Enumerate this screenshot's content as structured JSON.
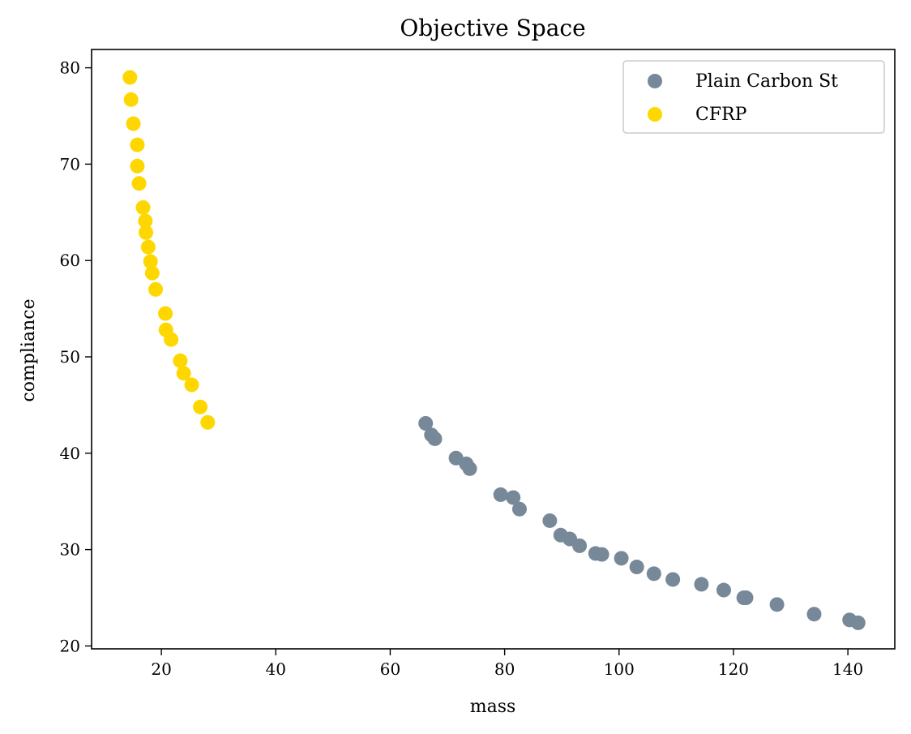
{
  "chart_data": {
    "type": "scatter",
    "title": "Objective Space",
    "xlabel": "mass",
    "ylabel": "compliance",
    "xlim": [
      7.8,
      148.2
    ],
    "ylim": [
      19.7,
      81.9
    ],
    "xticks": [
      20,
      40,
      60,
      80,
      100,
      120,
      140
    ],
    "yticks": [
      20,
      30,
      40,
      50,
      60,
      70,
      80
    ],
    "grid": false,
    "legend_position": "top-right",
    "series": [
      {
        "name": "Plain Carbon St",
        "color": "#778899",
        "points": [
          [
            66.2,
            43.1
          ],
          [
            67.2,
            41.9
          ],
          [
            67.8,
            41.5
          ],
          [
            71.5,
            39.5
          ],
          [
            73.3,
            38.9
          ],
          [
            73.9,
            38.4
          ],
          [
            79.3,
            35.7
          ],
          [
            81.5,
            35.4
          ],
          [
            82.6,
            34.2
          ],
          [
            87.9,
            33.0
          ],
          [
            89.8,
            31.5
          ],
          [
            91.4,
            31.1
          ],
          [
            93.1,
            30.4
          ],
          [
            95.9,
            29.6
          ],
          [
            97.0,
            29.5
          ],
          [
            100.4,
            29.1
          ],
          [
            103.1,
            28.2
          ],
          [
            106.1,
            27.5
          ],
          [
            109.4,
            26.9
          ],
          [
            114.4,
            26.4
          ],
          [
            118.3,
            25.8
          ],
          [
            121.8,
            25.0
          ],
          [
            122.2,
            25.0
          ],
          [
            127.6,
            24.3
          ],
          [
            134.1,
            23.3
          ],
          [
            140.3,
            22.7
          ],
          [
            141.8,
            22.4
          ]
        ]
      },
      {
        "name": "CFRP",
        "color": "#ffd700",
        "points": [
          [
            14.5,
            79.0
          ],
          [
            14.7,
            76.7
          ],
          [
            15.1,
            74.2
          ],
          [
            15.8,
            72.0
          ],
          [
            15.8,
            69.8
          ],
          [
            16.1,
            68.0
          ],
          [
            16.8,
            65.5
          ],
          [
            17.2,
            64.1
          ],
          [
            17.3,
            62.9
          ],
          [
            17.7,
            61.4
          ],
          [
            18.1,
            59.9
          ],
          [
            18.4,
            58.7
          ],
          [
            19.0,
            57.0
          ],
          [
            20.7,
            54.5
          ],
          [
            20.8,
            52.8
          ],
          [
            21.7,
            51.8
          ],
          [
            23.3,
            49.6
          ],
          [
            23.9,
            48.3
          ],
          [
            25.3,
            47.1
          ],
          [
            26.8,
            44.8
          ],
          [
            28.1,
            43.2
          ]
        ]
      }
    ]
  }
}
